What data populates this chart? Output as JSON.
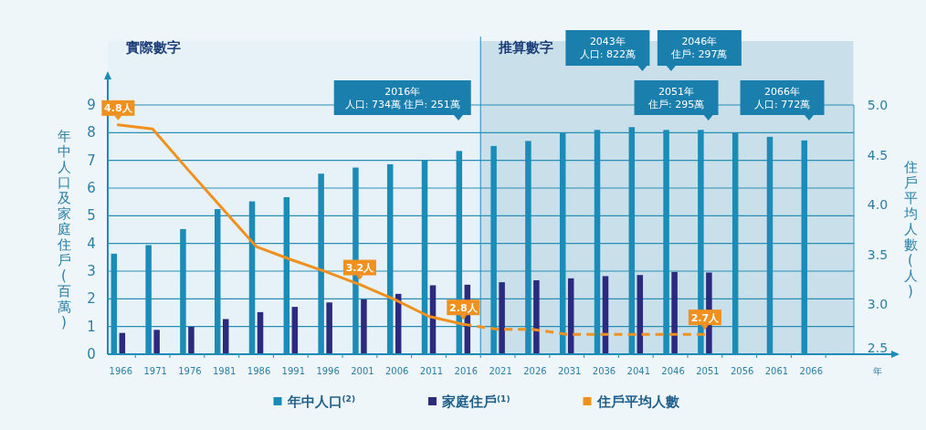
{
  "chart_data": {
    "type": "bar",
    "x": [
      1966,
      1971,
      1976,
      1981,
      1986,
      1991,
      1996,
      2001,
      2006,
      2011,
      2016,
      2021,
      2026,
      2031,
      2036,
      2041,
      2046,
      2051,
      2056,
      2061,
      2066
    ],
    "xlim": [
      1964.5,
      2078
    ],
    "xticks": [
      1966,
      1971,
      1976,
      1981,
      1986,
      1991,
      1996,
      2001,
      2006,
      2011,
      2016,
      2021,
      2026,
      2031,
      2036,
      2041,
      2046,
      2051,
      2056,
      2061,
      2066
    ],
    "xlabel": "年",
    "ylabel": "年中人口及家庭住戶(百萬)",
    "y2label": "住戶平均人數(人)",
    "ylim": [
      0,
      9
    ],
    "yticks": [
      0,
      1,
      2,
      3,
      4,
      5,
      6,
      7,
      8,
      9
    ],
    "y2lim": [
      2.5,
      5.0
    ],
    "y2ticks": [
      {
        "value": 2.5,
        "label": "2.5"
      },
      {
        "value": 3.0,
        "label": "3.0"
      },
      {
        "value": 3.5,
        "label": "3.5"
      },
      {
        "value": 4.0,
        "label": "4.0"
      },
      {
        "value": 4.5,
        "label": "4.5"
      },
      {
        "value": 5.0,
        "label": "5.0"
      }
    ],
    "grid": "y",
    "legend": "bottom",
    "bands": [
      {
        "axis": "x",
        "from": 1964.5,
        "to": 2018.5,
        "label": "實際數字",
        "color": "#e6f2f8"
      },
      {
        "axis": "x",
        "from": 2018.5,
        "to": 2072.5,
        "label": "推算數字",
        "color": "#c9e0eb"
      }
    ],
    "ref_lines": [
      {
        "axis": "x",
        "value": 2018.5,
        "color": "#1b8cb8"
      }
    ],
    "annotations": [
      "2016年人口: 734萬 住戶: 251萬",
      "2043年人口: 822萬",
      "2046年住戶: 297萬",
      "2051年住戶: 295萬",
      "2066年人口: 772萬"
    ],
    "series": [
      {
        "name": "年中人口$^{(2)}$",
        "color": "#1b8cb8",
        "values": [
          3.63,
          3.94,
          4.52,
          5.24,
          5.52,
          5.67,
          6.52,
          6.74,
          6.86,
          7.0,
          7.34,
          7.52,
          7.7,
          7.98,
          8.1,
          8.2,
          8.1,
          8.1,
          8.0,
          7.85,
          7.72
        ]
      },
      {
        "name": "家庭住戶$^{(1)}$",
        "color": "#2b2a7e",
        "values": [
          0.77,
          0.88,
          0.99,
          1.27,
          1.52,
          1.71,
          1.87,
          1.98,
          2.18,
          2.49,
          2.51,
          2.6,
          2.67,
          2.74,
          2.82,
          2.86,
          2.97,
          2.95,
          null,
          null,
          null
        ]
      },
      {
        "name": "住戶平均人數",
        "type": "line",
        "axis": "y2",
        "color": "#f0901e",
        "line_style": "solid",
        "marker": "none",
        "values": [
          4.8,
          4.76,
          4.36,
          3.97,
          3.58,
          3.45,
          3.33,
          3.2,
          3.05,
          2.88,
          2.8,
          null,
          null,
          null,
          null,
          null,
          null,
          null,
          null,
          null,
          null
        ],
        "value_labels": [
          "4.8人",
          null,
          null,
          null,
          null,
          null,
          null,
          "3.2人",
          null,
          null,
          "2.8人",
          null,
          null,
          null,
          null,
          null,
          null,
          null,
          null,
          null,
          null
        ]
      },
      {
        "type": "line",
        "axis": "y2",
        "color": "#f0901e",
        "line_style": "dashed",
        "marker": "none",
        "values": [
          null,
          null,
          null,
          null,
          null,
          null,
          null,
          null,
          null,
          null,
          2.8,
          2.75,
          2.75,
          2.7,
          2.7,
          2.7,
          2.7,
          2.7,
          null,
          null,
          null
        ],
        "value_labels": [
          null,
          null,
          null,
          null,
          null,
          null,
          null,
          null,
          null,
          null,
          null,
          null,
          null,
          null,
          null,
          null,
          null,
          "2.7人",
          null,
          null,
          null
        ]
      }
    ]
  }
}
